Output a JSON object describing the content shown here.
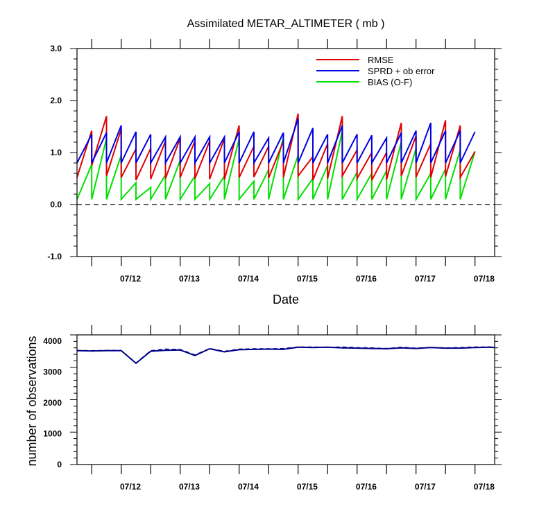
{
  "chart_data": [
    {
      "type": "line",
      "title": "Assimilated METAR_ALTIMETER ( mb )",
      "xlabel": "Date",
      "ylabel": "",
      "ylim": [
        -1.0,
        3.0
      ],
      "yticks": [
        "-1.0",
        "0.0",
        "1.0",
        "2.0",
        "3.0"
      ],
      "xlim": [
        0,
        85
      ],
      "x_tick_labels": [
        "07/12",
        "07/13",
        "07/14",
        "07/15",
        "07/16",
        "07/17",
        "07/18"
      ],
      "x_tick_positions": [
        12,
        24,
        36,
        48,
        60,
        72,
        84
      ],
      "cycle_hours": 6,
      "legend_position": "top-right",
      "zero_line": "dashed",
      "colors": {
        "rmse": "#e00000",
        "sprd": "#0000e0",
        "bias": "#00e000"
      },
      "series": [
        {
          "name": "RMSE",
          "color": "#e00000",
          "points": [
            [
              0,
              0.52
            ],
            [
              3,
              1.42
            ],
            [
              3,
              0.75
            ],
            [
              6,
              1.7
            ],
            [
              6,
              0.55
            ],
            [
              9,
              1.45
            ],
            [
              9,
              0.52
            ],
            [
              12,
              1.07
            ],
            [
              12,
              0.47
            ],
            [
              15,
              1.08
            ],
            [
              15,
              0.49
            ],
            [
              18,
              1.22
            ],
            [
              18,
              0.5
            ],
            [
              21,
              1.28
            ],
            [
              21,
              0.52
            ],
            [
              24,
              1.22
            ],
            [
              24,
              0.5
            ],
            [
              27,
              1.22
            ],
            [
              27,
              0.49
            ],
            [
              30,
              1.27
            ],
            [
              30,
              0.48
            ],
            [
              33,
              1.52
            ],
            [
              33,
              0.52
            ],
            [
              36,
              1.12
            ],
            [
              36,
              0.53
            ],
            [
              39,
              1.12
            ],
            [
              39,
              0.51
            ],
            [
              42,
              1.22
            ],
            [
              42,
              0.52
            ],
            [
              45,
              1.75
            ],
            [
              45,
              0.55
            ],
            [
              48,
              0.92
            ],
            [
              48,
              0.47
            ],
            [
              51,
              1.17
            ],
            [
              51,
              0.5
            ],
            [
              54,
              1.7
            ],
            [
              54,
              0.55
            ],
            [
              57,
              1.05
            ],
            [
              57,
              0.5
            ],
            [
              60,
              1.0
            ],
            [
              60,
              0.47
            ],
            [
              63,
              1.0
            ],
            [
              63,
              0.48
            ],
            [
              66,
              1.57
            ],
            [
              66,
              0.55
            ],
            [
              69,
              1.32
            ],
            [
              69,
              0.53
            ],
            [
              72,
              1.17
            ],
            [
              72,
              0.52
            ],
            [
              75,
              1.62
            ],
            [
              75,
              0.54
            ],
            [
              78,
              1.52
            ],
            [
              78,
              0.52
            ],
            [
              81,
              1.02
            ]
          ]
        },
        {
          "name": "SPRD + ob error",
          "color": "#0000e0",
          "points": [
            [
              0,
              0.8
            ],
            [
              3,
              1.35
            ],
            [
              3,
              0.8
            ],
            [
              6,
              1.38
            ],
            [
              6,
              0.8
            ],
            [
              9,
              1.52
            ],
            [
              9,
              0.8
            ],
            [
              12,
              1.4
            ],
            [
              12,
              0.8
            ],
            [
              15,
              1.35
            ],
            [
              15,
              0.8
            ],
            [
              18,
              1.3
            ],
            [
              18,
              0.8
            ],
            [
              21,
              1.3
            ],
            [
              21,
              0.8
            ],
            [
              24,
              1.3
            ],
            [
              24,
              0.8
            ],
            [
              27,
              1.3
            ],
            [
              27,
              0.8
            ],
            [
              30,
              1.3
            ],
            [
              30,
              0.8
            ],
            [
              33,
              1.4
            ],
            [
              33,
              0.8
            ],
            [
              36,
              1.4
            ],
            [
              36,
              0.8
            ],
            [
              39,
              1.28
            ],
            [
              39,
              0.8
            ],
            [
              42,
              1.38
            ],
            [
              42,
              0.8
            ],
            [
              45,
              1.65
            ],
            [
              45,
              0.8
            ],
            [
              48,
              1.47
            ],
            [
              48,
              0.8
            ],
            [
              51,
              1.35
            ],
            [
              51,
              0.8
            ],
            [
              54,
              1.52
            ],
            [
              54,
              0.8
            ],
            [
              57,
              1.35
            ],
            [
              57,
              0.8
            ],
            [
              60,
              1.33
            ],
            [
              60,
              0.8
            ],
            [
              63,
              1.28
            ],
            [
              63,
              0.8
            ],
            [
              66,
              1.38
            ],
            [
              66,
              0.8
            ],
            [
              69,
              1.42
            ],
            [
              69,
              0.8
            ],
            [
              72,
              1.57
            ],
            [
              72,
              0.8
            ],
            [
              75,
              1.42
            ],
            [
              75,
              0.8
            ],
            [
              78,
              1.42
            ],
            [
              78,
              0.8
            ],
            [
              81,
              1.4
            ]
          ]
        },
        {
          "name": "BIAS (O-F)",
          "color": "#00e000",
          "points": [
            [
              0,
              0.1
            ],
            [
              3,
              0.77
            ],
            [
              3,
              0.1
            ],
            [
              6,
              1.27
            ],
            [
              6,
              0.1
            ],
            [
              9,
              0.95
            ],
            [
              9,
              0.1
            ],
            [
              12,
              0.42
            ],
            [
              12,
              0.1
            ],
            [
              15,
              0.33
            ],
            [
              15,
              0.1
            ],
            [
              18,
              0.57
            ],
            [
              18,
              0.1
            ],
            [
              21,
              0.85
            ],
            [
              21,
              0.1
            ],
            [
              24,
              0.55
            ],
            [
              24,
              0.1
            ],
            [
              27,
              0.4
            ],
            [
              27,
              0.1
            ],
            [
              30,
              0.55
            ],
            [
              30,
              0.1
            ],
            [
              33,
              1.27
            ],
            [
              33,
              0.1
            ],
            [
              36,
              0.45
            ],
            [
              36,
              0.1
            ],
            [
              39,
              0.67
            ],
            [
              39,
              0.1
            ],
            [
              42,
              1.3
            ],
            [
              42,
              0.1
            ],
            [
              45,
              0.95
            ],
            [
              45,
              0.1
            ],
            [
              48,
              0.5
            ],
            [
              48,
              0.1
            ],
            [
              51,
              0.75
            ],
            [
              51,
              0.1
            ],
            [
              54,
              1.42
            ],
            [
              54,
              0.1
            ],
            [
              57,
              0.62
            ],
            [
              57,
              0.1
            ],
            [
              60,
              0.6
            ],
            [
              60,
              0.1
            ],
            [
              63,
              0.65
            ],
            [
              63,
              0.1
            ],
            [
              66,
              1.2
            ],
            [
              66,
              0.1
            ],
            [
              69,
              1.08
            ],
            [
              69,
              0.1
            ],
            [
              72,
              0.6
            ],
            [
              72,
              0.1
            ],
            [
              75,
              0.68
            ],
            [
              75,
              0.1
            ],
            [
              78,
              1.05
            ],
            [
              78,
              0.1
            ],
            [
              81,
              1.02
            ]
          ]
        }
      ]
    },
    {
      "type": "line",
      "title": "",
      "xlabel": "",
      "ylabel": "number of observations",
      "ylim": [
        0,
        4200
      ],
      "yticks": [
        "0",
        "1000",
        "2000",
        "3000",
        "4000"
      ],
      "xlim": [
        0,
        85
      ],
      "x_tick_labels": [
        "07/12",
        "07/13",
        "07/14",
        "07/15",
        "07/16",
        "07/17",
        "07/18"
      ],
      "x_tick_positions": [
        12,
        24,
        36,
        48,
        60,
        72,
        84
      ],
      "series": [
        {
          "name": "",
          "color": "#00008b",
          "dashed": false,
          "x": [
            0,
            3,
            6,
            9,
            12,
            15,
            18,
            21,
            24,
            27,
            30,
            33,
            36,
            39,
            42,
            45,
            48,
            51,
            54,
            57,
            60,
            63,
            66,
            69,
            72,
            75,
            78,
            81,
            84,
            85
          ],
          "values": [
            3690,
            3680,
            3690,
            3690,
            3280,
            3670,
            3700,
            3710,
            3530,
            3750,
            3650,
            3720,
            3730,
            3740,
            3730,
            3800,
            3790,
            3800,
            3780,
            3770,
            3760,
            3750,
            3780,
            3760,
            3790,
            3770,
            3770,
            3790,
            3800,
            3790
          ]
        },
        {
          "name": "",
          "color": "#00008b",
          "dashed": true,
          "x": [
            0,
            3,
            6,
            9,
            12,
            15,
            18,
            21,
            24,
            27,
            30,
            33,
            36,
            39,
            42,
            45,
            48,
            51,
            54,
            57,
            60,
            63,
            66,
            69,
            72,
            75,
            78,
            81,
            84,
            85
          ],
          "values": [
            3700,
            3690,
            3700,
            3700,
            3290,
            3690,
            3740,
            3730,
            3550,
            3760,
            3670,
            3740,
            3750,
            3750,
            3760,
            3810,
            3810,
            3800,
            3810,
            3790,
            3780,
            3760,
            3800,
            3770,
            3800,
            3780,
            3790,
            3810,
            3810,
            3800
          ]
        }
      ]
    }
  ]
}
